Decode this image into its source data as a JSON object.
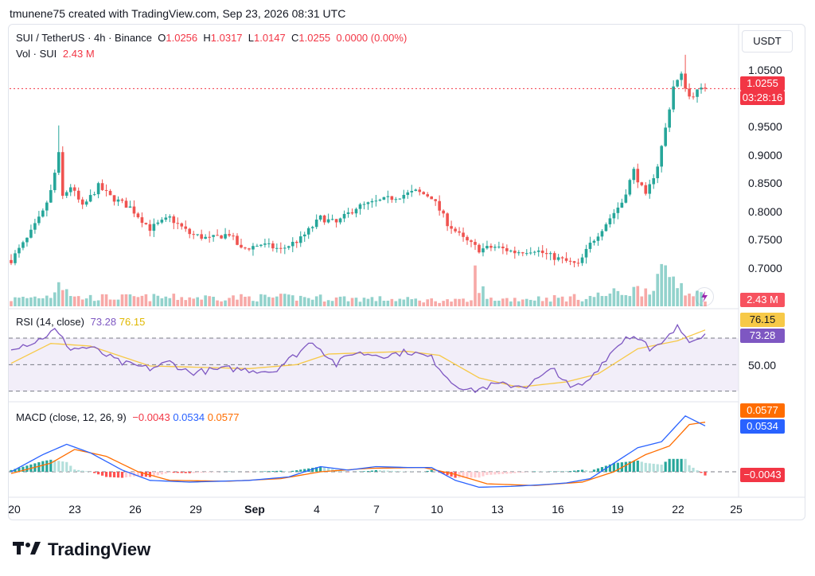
{
  "header": {
    "caption": "tmunene75 created with TradingView.com, Sep 23, 2026 08:31 UTC"
  },
  "symbol": {
    "pair": "SUI / TetherUS · 4h · Binance",
    "o_label": "O",
    "o": "1.0256",
    "h_label": "H",
    "h": "1.0317",
    "l_label": "L",
    "l": "1.0147",
    "c_label": "C",
    "c": "1.0255",
    "change": "0.0000 (0.00%)",
    "vol_label": "Vol · SUI",
    "vol": "2.43 M"
  },
  "price_axis": {
    "currency": "USDT",
    "ticks": [
      "1.0500",
      "0.9500",
      "0.9000",
      "0.8500",
      "0.8000",
      "0.7500",
      "0.7000"
    ],
    "last_price": "1.0255",
    "countdown": "03:28:16",
    "volume_badge": "2.43 M"
  },
  "rsi": {
    "title": "RSI (14, close)",
    "value": "73.28",
    "ma": "76.15",
    "tick": "50.00",
    "badge_rsi": "73.28",
    "badge_ma": "76.15"
  },
  "macd": {
    "title": "MACD (close, 12, 26, 9)",
    "hist": "−0.0043",
    "macd": "0.0534",
    "signal": "0.0577",
    "badge_signal": "0.0577",
    "badge_macd": "0.0534",
    "badge_hist": "−0.0043"
  },
  "x_axis": {
    "ticks": [
      "20",
      "23",
      "26",
      "29",
      "Sep",
      "4",
      "7",
      "10",
      "13",
      "16",
      "19",
      "22",
      "25"
    ]
  },
  "brand": {
    "name": "TradingView"
  },
  "colors": {
    "up": "#26a69a",
    "down": "#ef5350",
    "rsi": "#7e57c2",
    "rsi_ma": "#f7c948",
    "macd": "#2962ff",
    "signal": "#ff6d00",
    "price_line": "#f23645"
  },
  "chart_data": {
    "type": "candlestick",
    "symbol": "SUI / TetherUS",
    "interval": "4h",
    "price_anchors": [
      {
        "x": 0,
        "y": 0.7
      },
      {
        "x": 4,
        "y": 0.74
      },
      {
        "x": 8,
        "y": 0.79
      },
      {
        "x": 10,
        "y": 0.83
      },
      {
        "x": 12,
        "y": 0.9
      },
      {
        "x": 13,
        "y": 0.82
      },
      {
        "x": 15,
        "y": 0.84
      },
      {
        "x": 18,
        "y": 0.8
      },
      {
        "x": 22,
        "y": 0.84
      },
      {
        "x": 25,
        "y": 0.82
      },
      {
        "x": 30,
        "y": 0.8
      },
      {
        "x": 35,
        "y": 0.76
      },
      {
        "x": 40,
        "y": 0.78
      },
      {
        "x": 45,
        "y": 0.75
      },
      {
        "x": 50,
        "y": 0.74
      },
      {
        "x": 55,
        "y": 0.75
      },
      {
        "x": 58,
        "y": 0.72
      },
      {
        "x": 63,
        "y": 0.73
      },
      {
        "x": 68,
        "y": 0.72
      },
      {
        "x": 73,
        "y": 0.74
      },
      {
        "x": 78,
        "y": 0.78
      },
      {
        "x": 82,
        "y": 0.77
      },
      {
        "x": 87,
        "y": 0.8
      },
      {
        "x": 92,
        "y": 0.81
      },
      {
        "x": 97,
        "y": 0.82
      },
      {
        "x": 102,
        "y": 0.83
      },
      {
        "x": 106,
        "y": 0.82
      },
      {
        "x": 110,
        "y": 0.77
      },
      {
        "x": 114,
        "y": 0.74
      },
      {
        "x": 118,
        "y": 0.72
      },
      {
        "x": 122,
        "y": 0.725
      },
      {
        "x": 127,
        "y": 0.715
      },
      {
        "x": 132,
        "y": 0.72
      },
      {
        "x": 135,
        "y": 0.71
      },
      {
        "x": 139,
        "y": 0.7
      },
      {
        "x": 143,
        "y": 0.69
      },
      {
        "x": 146,
        "y": 0.73
      },
      {
        "x": 150,
        "y": 0.77
      },
      {
        "x": 154,
        "y": 0.81
      },
      {
        "x": 157,
        "y": 0.87
      },
      {
        "x": 160,
        "y": 0.82
      },
      {
        "x": 163,
        "y": 0.88
      },
      {
        "x": 165,
        "y": 0.95
      },
      {
        "x": 167,
        "y": 1.03
      },
      {
        "x": 169,
        "y": 1.05
      },
      {
        "x": 171,
        "y": 1.01
      },
      {
        "x": 173,
        "y": 1.02
      },
      {
        "x": 175,
        "y": 1.0255
      }
    ],
    "volume_anchors": [
      {
        "x": 0,
        "y": 0.4
      },
      {
        "x": 10,
        "y": 0.6
      },
      {
        "x": 12,
        "y": 1.6
      },
      {
        "x": 16,
        "y": 0.5
      },
      {
        "x": 40,
        "y": 0.5
      },
      {
        "x": 75,
        "y": 0.5
      },
      {
        "x": 95,
        "y": 0.4
      },
      {
        "x": 116,
        "y": 0.3
      },
      {
        "x": 117,
        "y": 1.8
      },
      {
        "x": 120,
        "y": 0.4
      },
      {
        "x": 145,
        "y": 0.5
      },
      {
        "x": 160,
        "y": 1.0
      },
      {
        "x": 163,
        "y": 1.6
      },
      {
        "x": 166,
        "y": 1.8
      },
      {
        "x": 170,
        "y": 1.1
      },
      {
        "x": 175,
        "y": 0.5
      }
    ],
    "rsi_anchors": [
      {
        "x": 0,
        "y": 63
      },
      {
        "x": 6,
        "y": 67
      },
      {
        "x": 11,
        "y": 76
      },
      {
        "x": 15,
        "y": 62
      },
      {
        "x": 20,
        "y": 63
      },
      {
        "x": 28,
        "y": 51
      },
      {
        "x": 35,
        "y": 47
      },
      {
        "x": 40,
        "y": 52
      },
      {
        "x": 45,
        "y": 44
      },
      {
        "x": 55,
        "y": 47
      },
      {
        "x": 60,
        "y": 46
      },
      {
        "x": 66,
        "y": 45
      },
      {
        "x": 72,
        "y": 58
      },
      {
        "x": 76,
        "y": 68
      },
      {
        "x": 82,
        "y": 50
      },
      {
        "x": 86,
        "y": 59
      },
      {
        "x": 95,
        "y": 57
      },
      {
        "x": 100,
        "y": 60
      },
      {
        "x": 106,
        "y": 55
      },
      {
        "x": 111,
        "y": 37
      },
      {
        "x": 116,
        "y": 30
      },
      {
        "x": 122,
        "y": 35
      },
      {
        "x": 130,
        "y": 34
      },
      {
        "x": 137,
        "y": 47
      },
      {
        "x": 141,
        "y": 32
      },
      {
        "x": 145,
        "y": 36
      },
      {
        "x": 150,
        "y": 55
      },
      {
        "x": 155,
        "y": 71
      },
      {
        "x": 159,
        "y": 71
      },
      {
        "x": 161,
        "y": 60
      },
      {
        "x": 164,
        "y": 65
      },
      {
        "x": 168,
        "y": 78
      },
      {
        "x": 171,
        "y": 69
      },
      {
        "x": 175,
        "y": 73.28
      }
    ],
    "rsi_ma_anchors": [
      {
        "x": 0,
        "y": 51
      },
      {
        "x": 10,
        "y": 66
      },
      {
        "x": 20,
        "y": 64
      },
      {
        "x": 35,
        "y": 49
      },
      {
        "x": 60,
        "y": 47
      },
      {
        "x": 72,
        "y": 50
      },
      {
        "x": 80,
        "y": 58
      },
      {
        "x": 100,
        "y": 60
      },
      {
        "x": 108,
        "y": 57
      },
      {
        "x": 118,
        "y": 40
      },
      {
        "x": 128,
        "y": 33
      },
      {
        "x": 140,
        "y": 37
      },
      {
        "x": 148,
        "y": 43
      },
      {
        "x": 158,
        "y": 62
      },
      {
        "x": 168,
        "y": 68
      },
      {
        "x": 175,
        "y": 76.15
      }
    ],
    "macd_anchors": [
      {
        "x": 0,
        "y": 0.0
      },
      {
        "x": 8,
        "y": 0.02
      },
      {
        "x": 14,
        "y": 0.032
      },
      {
        "x": 20,
        "y": 0.022
      },
      {
        "x": 28,
        "y": 0.002
      },
      {
        "x": 35,
        "y": -0.01
      },
      {
        "x": 45,
        "y": -0.012
      },
      {
        "x": 60,
        "y": -0.01
      },
      {
        "x": 70,
        "y": -0.006
      },
      {
        "x": 78,
        "y": 0.006
      },
      {
        "x": 85,
        "y": 0.002
      },
      {
        "x": 92,
        "y": 0.006
      },
      {
        "x": 100,
        "y": 0.005
      },
      {
        "x": 106,
        "y": 0.005
      },
      {
        "x": 112,
        "y": -0.01
      },
      {
        "x": 118,
        "y": -0.018
      },
      {
        "x": 126,
        "y": -0.017
      },
      {
        "x": 134,
        "y": -0.015
      },
      {
        "x": 140,
        "y": -0.013
      },
      {
        "x": 146,
        "y": -0.008
      },
      {
        "x": 152,
        "y": 0.01
      },
      {
        "x": 158,
        "y": 0.028
      },
      {
        "x": 164,
        "y": 0.035
      },
      {
        "x": 170,
        "y": 0.065
      },
      {
        "x": 175,
        "y": 0.0534
      }
    ],
    "signal_anchors": [
      {
        "x": 0,
        "y": -0.002
      },
      {
        "x": 10,
        "y": 0.01
      },
      {
        "x": 16,
        "y": 0.026
      },
      {
        "x": 24,
        "y": 0.018
      },
      {
        "x": 32,
        "y": 0.0
      },
      {
        "x": 40,
        "y": -0.01
      },
      {
        "x": 55,
        "y": -0.011
      },
      {
        "x": 68,
        "y": -0.008
      },
      {
        "x": 78,
        "y": 0.0
      },
      {
        "x": 90,
        "y": 0.004
      },
      {
        "x": 104,
        "y": 0.005
      },
      {
        "x": 112,
        "y": -0.003
      },
      {
        "x": 120,
        "y": -0.014
      },
      {
        "x": 132,
        "y": -0.016
      },
      {
        "x": 144,
        "y": -0.012
      },
      {
        "x": 152,
        "y": 0.0
      },
      {
        "x": 160,
        "y": 0.02
      },
      {
        "x": 166,
        "y": 0.03
      },
      {
        "x": 171,
        "y": 0.055
      },
      {
        "x": 175,
        "y": 0.0577
      }
    ],
    "last_price": 1.0255,
    "ylim_price": [
      0.665,
      1.085
    ],
    "ylim_rsi": [
      25,
      85
    ],
    "ylim_macd": [
      -0.025,
      0.075
    ],
    "rsi_levels": [
      70,
      50,
      30
    ]
  }
}
